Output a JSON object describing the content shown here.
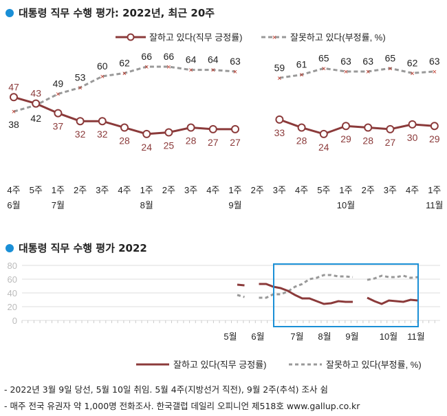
{
  "chart_data": [
    {
      "type": "line",
      "title": "대통령 직무 수행 평가: 2022년, 최근 20주",
      "categories": [
        "4주|6월",
        "5주",
        "1주|7월",
        "2주",
        "3주",
        "4주",
        "1주|8월",
        "2주",
        "3주",
        "4주",
        "1주|9월",
        "2주",
        "3주",
        "4주",
        "5주",
        "1주|10월",
        "2주",
        "3주",
        "4주",
        "1주|11월"
      ],
      "series": [
        {
          "name": "잘하고 있다(직무 긍정률)",
          "color": "#8b3a3a",
          "values": [
            47,
            43,
            37,
            32,
            32,
            28,
            24,
            25,
            28,
            27,
            27,
            null,
            33,
            28,
            24,
            29,
            28,
            27,
            30,
            29
          ]
        },
        {
          "name": "잘못하고 있다(부정률, %)",
          "color": "#8c8c8c",
          "values": [
            38,
            42,
            49,
            53,
            60,
            62,
            66,
            66,
            64,
            64,
            63,
            null,
            59,
            61,
            65,
            63,
            63,
            65,
            62,
            63
          ]
        }
      ],
      "legend": "top-right",
      "grid": false
    },
    {
      "type": "line",
      "title": "대통령 직무 수행 평가 2022",
      "yticks": [
        "0",
        "20",
        "40",
        "60",
        "80"
      ],
      "ylim": [
        0,
        80
      ],
      "month_labels": [
        "5월",
        "6월",
        "7월",
        "8월",
        "9월",
        "10월",
        "11월"
      ],
      "series": [
        {
          "name": "잘하고 있다(직무 긍정률)",
          "color": "#8b3a3a",
          "values": [
            52,
            51,
            null,
            53,
            53,
            49,
            47,
            43,
            37,
            32,
            32,
            28,
            24,
            25,
            28,
            27,
            27,
            null,
            33,
            28,
            24,
            29,
            28,
            27,
            30,
            29
          ]
        },
        {
          "name": "잘못하고 있다(부정률, %)",
          "color": "#8c8c8c",
          "values": [
            37,
            34,
            null,
            33,
            33,
            38,
            38,
            42,
            49,
            53,
            60,
            62,
            66,
            66,
            64,
            64,
            63,
            null,
            59,
            61,
            65,
            63,
            63,
            65,
            62,
            63
          ]
        }
      ],
      "highlight_color": "#1a8fd6",
      "legend": "bottom-right",
      "grid": true
    }
  ],
  "notes": [
    "- 2022년 3월 9일 당선, 5월 10일 취임. 5월 4주(지방선거 직전), 9월 2주(추석) 조사 쉼",
    "- 매주 전국 유권자 약 1,000명 전화조사. 한국갤럽 데일리 오피니언 제518호 www.gallup.co.kr"
  ]
}
